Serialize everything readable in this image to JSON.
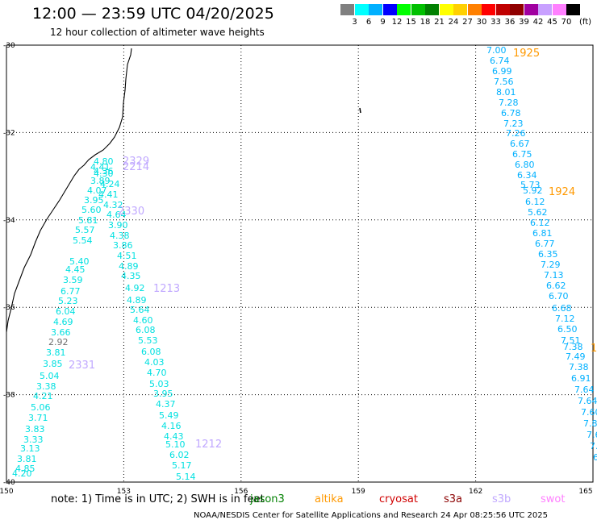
{
  "title": "12:00 — 23:59 UTC 04/20/2025",
  "subtitle": "12 hour collection of altimeter wave heights",
  "legend": {
    "unit": "(ft)",
    "bins": [
      {
        "label": "3",
        "color": "#808080"
      },
      {
        "label": "6",
        "color": "#00ffff"
      },
      {
        "label": "9",
        "color": "#00b0ff"
      },
      {
        "label": "12",
        "color": "#0000ff"
      },
      {
        "label": "15",
        "color": "#00ff00"
      },
      {
        "label": "18",
        "color": "#00c000"
      },
      {
        "label": "21",
        "color": "#008000"
      },
      {
        "label": "24",
        "color": "#ffff00"
      },
      {
        "label": "27",
        "color": "#ffd000"
      },
      {
        "label": "30",
        "color": "#ff8000"
      },
      {
        "label": "33",
        "color": "#ff0000"
      },
      {
        "label": "36",
        "color": "#c00000"
      },
      {
        "label": "39",
        "color": "#900000"
      },
      {
        "label": "42",
        "color": "#a000a0"
      },
      {
        "label": "45",
        "color": "#c8a0ff"
      },
      {
        "label": "70",
        "color": "#ff80ff"
      },
      {
        "label": "",
        "color": "#000000"
      }
    ]
  },
  "axes": {
    "lon_labels": [
      "150",
      "153",
      "156",
      "159",
      "162",
      "165"
    ],
    "lat_labels": [
      "-30",
      "-32",
      "-34",
      "-36",
      "-38",
      "-40"
    ]
  },
  "tracks": [
    {
      "time": "1925",
      "color": "#00b0ff",
      "timeColor": "#ff9900",
      "values": [
        "7.00",
        "6.74",
        "6.99",
        "7.56",
        "8.01",
        "7.28",
        "6.78",
        "7.23",
        "7.26",
        "6.67",
        "6.75",
        "6.80",
        "6.34",
        "5.73",
        "5.92",
        "6.12",
        "5.62",
        "6.12",
        "6.81",
        "6.77",
        "6.35",
        "7.29",
        "7.13",
        "6.62",
        "6.70",
        "6.68",
        "7.12",
        "6.50",
        "7.51",
        "7.38",
        "7.49",
        "7.38",
        "6.91",
        "7.64",
        "7.64",
        "7.60",
        "7.8",
        "7.6",
        "7.",
        "6"
      ]
    },
    {
      "time": "1924",
      "color": "#ff9900"
    },
    {
      "time": "1213",
      "color": "#00e0e0",
      "timeColor": "#c0a8ff",
      "values": [
        "4.80",
        "4.41",
        "4.30",
        "4.36",
        "3.89",
        "4.24",
        "4.07",
        "4.41",
        "3.95",
        "4.32",
        "5.60",
        "4.64",
        "5.81",
        "3.90",
        "5.57",
        "4.38",
        "5.54",
        "3.86",
        "5.40",
        "4.51",
        "4.45",
        "4.89",
        "3.59",
        "4.35",
        "6.77",
        "4.92",
        "5.23",
        "4.89",
        "6.04",
        "5.64",
        "4.69",
        "4.60",
        "3.66",
        "6.08",
        "2.92",
        "5.53",
        "3.81",
        "6.08",
        "3.85",
        "4.03",
        "5.04",
        "4.70",
        "3.38",
        "5.03",
        "4.21",
        "3.95",
        "5.06",
        "4.37",
        "3.71",
        "5.49",
        "3.83",
        "4.16",
        "3.33",
        "4.43",
        "3.13",
        "5.10",
        "3.81",
        "6.02",
        "4.85",
        "5.17",
        "4.20",
        "5.14"
      ]
    },
    {
      "time": "2329",
      "color": "#c0a8ff"
    },
    {
      "time": "2214",
      "color": "#c0a8ff"
    },
    {
      "time": "2330",
      "color": "#c0a8ff"
    },
    {
      "time": "2331",
      "color": "#c0a8ff"
    },
    {
      "time": "1212",
      "color": "#c0a8ff"
    },
    {
      "time": "1",
      "color": "#ff9900"
    }
  ],
  "note": "note:  1) Time is in UTC;  2) SWH is in feet",
  "satellites": [
    {
      "name": "jason3",
      "color": "#008000"
    },
    {
      "name": "altika",
      "color": "#ff9900"
    },
    {
      "name": "cryosat",
      "color": "#d00000"
    },
    {
      "name": "s3a",
      "color": "#8b0000"
    },
    {
      "name": "s3b",
      "color": "#c0a8ff"
    },
    {
      "name": "swot",
      "color": "#ff80ff"
    }
  ],
  "footer": "NOAA/NESDIS Center for Satellite Applications and Research     24 Apr 08:25:56 UTC 2025"
}
